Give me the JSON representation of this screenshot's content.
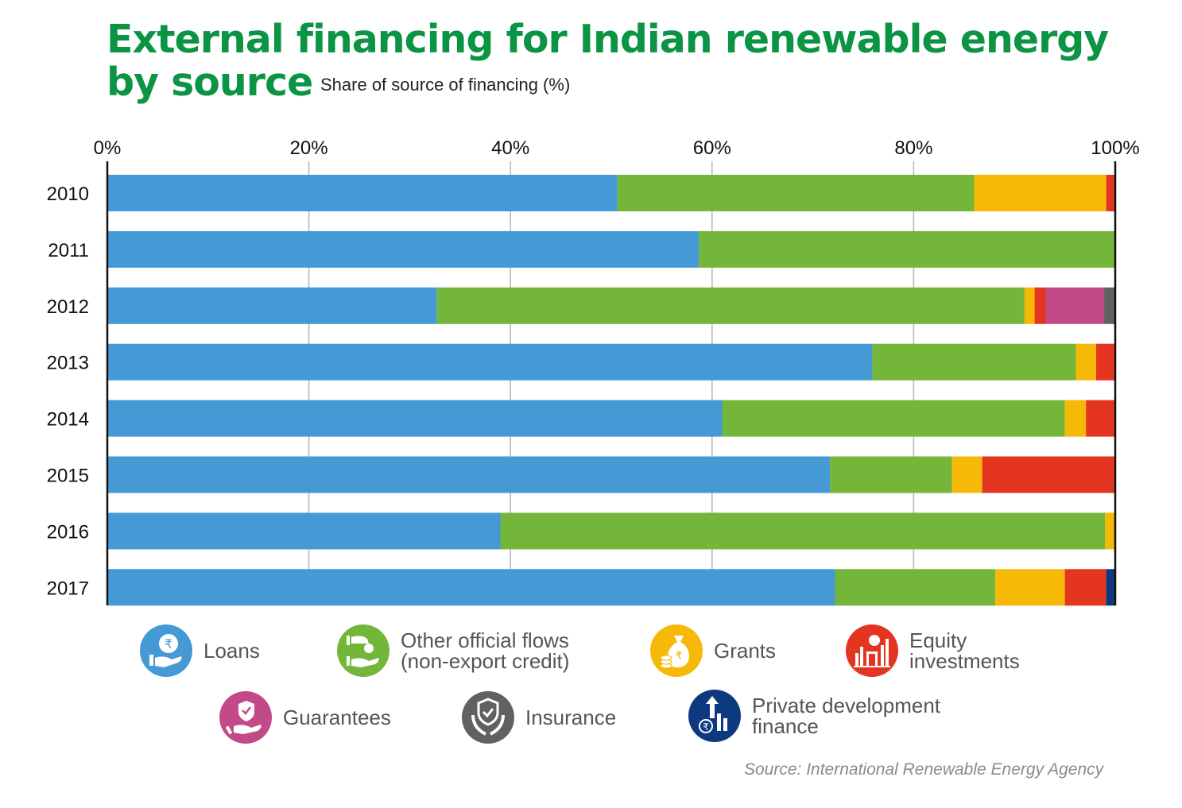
{
  "header": {
    "title_line1": "External financing for Indian renewable energy",
    "title_line2": "by source",
    "subtitle": "Share of source of financing (%)"
  },
  "source": "Source: International Renewable Energy Agency",
  "legend": [
    {
      "key": "loans",
      "label": "Loans",
      "color": "#4599d4",
      "icon": "hand-rupee-icon"
    },
    {
      "key": "oof",
      "label": "Other official flows\n(non-export credit)",
      "color": "#74b63a",
      "icon": "hand-coin-drop-icon"
    },
    {
      "key": "grants",
      "label": "Grants",
      "color": "#f6b907",
      "icon": "money-bag-icon"
    },
    {
      "key": "equity",
      "label": "Equity\ninvestments",
      "color": "#e3351f",
      "icon": "equity-chart-icon"
    },
    {
      "key": "guarantees",
      "label": "Guarantees",
      "color": "#c24a89",
      "icon": "hand-shield-icon"
    },
    {
      "key": "insurance",
      "label": "Insurance",
      "color": "#616161",
      "icon": "shield-hands-icon"
    },
    {
      "key": "pdf",
      "label": "Private development\nfinance",
      "color": "#0d3a7e",
      "icon": "growth-arrow-icon"
    }
  ],
  "chart_data": {
    "type": "bar",
    "orientation": "horizontal",
    "stacked": true,
    "title": "External financing for Indian renewable energy by source",
    "subtitle": "Share of source of financing (%)",
    "xlabel": "",
    "ylabel": "",
    "xlim": [
      0,
      100
    ],
    "x_ticks": [
      "0%",
      "20%",
      "40%",
      "60%",
      "80%",
      "100%"
    ],
    "x_tick_values": [
      0,
      20,
      40,
      60,
      80,
      100
    ],
    "grid": true,
    "legend_position": "bottom",
    "categories": [
      "2010",
      "2011",
      "2012",
      "2013",
      "2014",
      "2015",
      "2016",
      "2017"
    ],
    "series": [
      {
        "name": "Loans",
        "color": "#4599d4",
        "values": [
          50.6,
          58.7,
          32.7,
          75.9,
          61.0,
          71.7,
          39.0,
          72.2
        ]
      },
      {
        "name": "Other official flows (non-export credit)",
        "color": "#74b63a",
        "values": [
          35.4,
          41.3,
          58.3,
          20.2,
          34.0,
          12.1,
          60.0,
          15.9
        ]
      },
      {
        "name": "Grants",
        "color": "#f6b907",
        "values": [
          13.1,
          0,
          1.0,
          2.0,
          2.1,
          3.0,
          1.0,
          6.9
        ]
      },
      {
        "name": "Equity investments",
        "color": "#e3351f",
        "values": [
          0.9,
          0,
          1.1,
          1.9,
          2.9,
          13.2,
          0,
          4.1
        ]
      },
      {
        "name": "Guarantees",
        "color": "#c24a89",
        "values": [
          0,
          0,
          5.8,
          0,
          0,
          0,
          0,
          0
        ]
      },
      {
        "name": "Insurance",
        "color": "#616161",
        "values": [
          0,
          0,
          1.1,
          0,
          0,
          0,
          0,
          0
        ]
      },
      {
        "name": "Private development finance",
        "color": "#0d3a7e",
        "values": [
          0,
          0,
          0,
          0,
          0,
          0,
          0,
          0.9
        ]
      }
    ],
    "source": "Source: International Renewable Energy Agency"
  }
}
